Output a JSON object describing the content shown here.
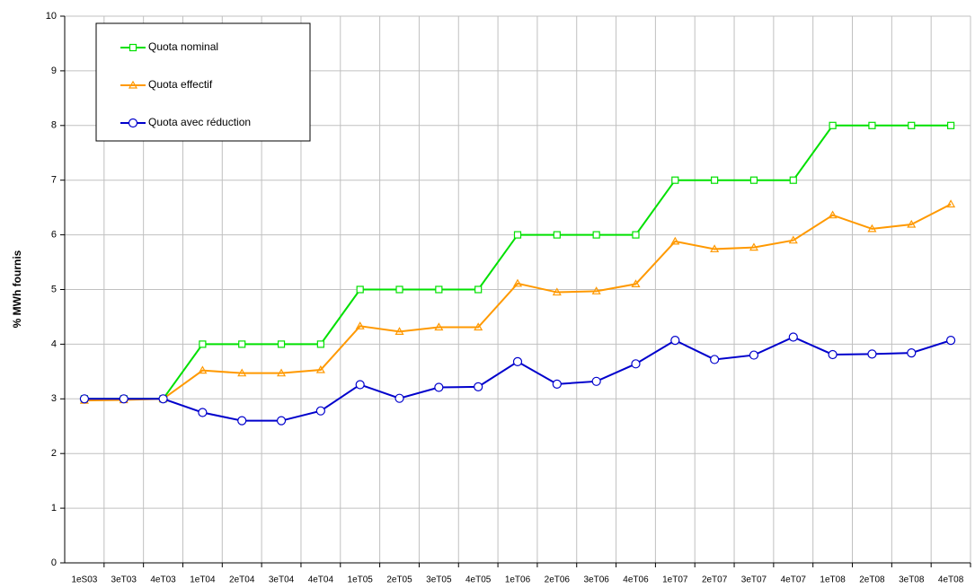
{
  "chart_data": {
    "type": "line",
    "y_label": "% MWh fournis",
    "categories": [
      "1eS03",
      "3eT03",
      "4eT03",
      "1eT04",
      "2eT04",
      "3eT04",
      "4eT04",
      "1eT05",
      "2eT05",
      "3eT05",
      "4eT05",
      "1eT06",
      "2eT06",
      "3eT06",
      "4eT06",
      "1eT07",
      "2eT07",
      "3eT07",
      "4eT07",
      "1eT08",
      "2eT08",
      "3eT08",
      "4eT08"
    ],
    "series": [
      {
        "name": "Quota nominal",
        "color": "#00e000",
        "marker": "square",
        "values": [
          3,
          3,
          3,
          4,
          4,
          4,
          4,
          5,
          5,
          5,
          5,
          6,
          6,
          6,
          6,
          7,
          7,
          7,
          7,
          8,
          8,
          8,
          8
        ]
      },
      {
        "name": "Quota effectif",
        "color": "#ff9900",
        "marker": "triangle",
        "values": [
          2.97,
          2.98,
          3.0,
          3.52,
          3.47,
          3.47,
          3.53,
          4.33,
          4.23,
          4.31,
          4.31,
          5.11,
          4.95,
          4.97,
          5.1,
          5.88,
          5.74,
          5.77,
          5.9,
          6.36,
          6.11,
          6.19,
          6.56
        ]
      },
      {
        "name": "Quota avec réduction",
        "color": "#0000cc",
        "marker": "circle",
        "values": [
          3,
          3,
          3,
          2.75,
          2.6,
          2.6,
          2.78,
          3.26,
          3.01,
          3.21,
          3.22,
          3.68,
          3.27,
          3.32,
          3.64,
          4.07,
          3.72,
          3.8,
          4.13,
          3.81,
          3.82,
          3.84,
          4.07
        ]
      }
    ],
    "ylim": [
      0,
      10
    ],
    "yticks": [
      0,
      1,
      2,
      3,
      4,
      5,
      6,
      7,
      8,
      9,
      10
    ],
    "grid": true,
    "legend": "upper left"
  }
}
